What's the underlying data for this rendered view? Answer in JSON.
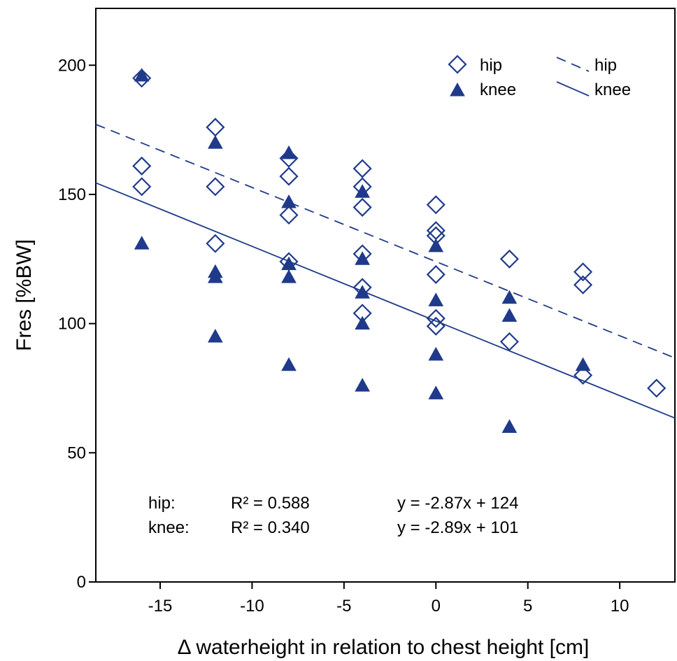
{
  "chart_data": {
    "type": "scatter",
    "xlabel": "Δ waterheight in relation to chest height [cm]",
    "ylabel": "Fres [%BW]",
    "xlim": [
      -18.5,
      13
    ],
    "ylim": [
      0,
      222
    ],
    "x_ticks": [
      -15,
      -10,
      -5,
      0,
      5,
      10
    ],
    "y_ticks": [
      0,
      50,
      100,
      150,
      200
    ],
    "grid": false,
    "legend_position": "top-right",
    "series": [
      {
        "name": "hip",
        "kind": "points",
        "marker": "diamond-open",
        "color": "#1f3a8a",
        "points": [
          [
            -16,
            195
          ],
          [
            -16,
            161
          ],
          [
            -16,
            153
          ],
          [
            -12,
            176
          ],
          [
            -12,
            153
          ],
          [
            -12,
            131
          ],
          [
            -8,
            164
          ],
          [
            -8,
            157
          ],
          [
            -8,
            142
          ],
          [
            -8,
            124
          ],
          [
            -4,
            160
          ],
          [
            -4,
            153
          ],
          [
            -4,
            145
          ],
          [
            -4,
            127
          ],
          [
            -4,
            114
          ],
          [
            -4,
            104
          ],
          [
            0,
            146
          ],
          [
            0,
            136
          ],
          [
            0,
            134
          ],
          [
            0,
            119
          ],
          [
            0,
            102
          ],
          [
            0,
            99
          ],
          [
            4,
            125
          ],
          [
            4,
            93
          ],
          [
            8,
            120
          ],
          [
            8,
            115
          ],
          [
            8,
            80
          ],
          [
            12,
            75
          ]
        ]
      },
      {
        "name": "knee",
        "kind": "points",
        "marker": "triangle-filled",
        "color": "#1f3a8a",
        "points": [
          [
            -16,
            196
          ],
          [
            -16,
            131
          ],
          [
            -12,
            170
          ],
          [
            -12,
            120
          ],
          [
            -12,
            118
          ],
          [
            -12,
            95
          ],
          [
            -8,
            166
          ],
          [
            -8,
            147
          ],
          [
            -8,
            123
          ],
          [
            -8,
            118
          ],
          [
            -8,
            84
          ],
          [
            -4,
            151
          ],
          [
            -4,
            125
          ],
          [
            -4,
            112
          ],
          [
            -4,
            100
          ],
          [
            -4,
            76
          ],
          [
            0,
            130
          ],
          [
            0,
            109
          ],
          [
            0,
            88
          ],
          [
            0,
            73
          ],
          [
            4,
            110
          ],
          [
            4,
            103
          ],
          [
            4,
            60
          ],
          [
            8,
            84
          ]
        ]
      },
      {
        "name": "hip",
        "kind": "fit-line",
        "style": "dashed",
        "color": "#1f3a8a",
        "slope": -2.87,
        "intercept": 124
      },
      {
        "name": "knee",
        "kind": "fit-line",
        "style": "solid",
        "color": "#1f3a8a",
        "slope": -2.89,
        "intercept": 101
      }
    ],
    "legend": {
      "points": [
        {
          "label": "hip",
          "marker": "diamond-open"
        },
        {
          "label": "knee",
          "marker": "triangle-filled"
        }
      ],
      "lines": [
        {
          "label": "hip",
          "style": "dashed"
        },
        {
          "label": "knee",
          "style": "solid"
        }
      ]
    },
    "annotations": {
      "rows": [
        {
          "name": "hip:",
          "r2": "R² = 0.588",
          "eq": "y = -2.87x + 124"
        },
        {
          "name": "knee:",
          "r2": "R² = 0.340",
          "eq": "y = -2.89x + 101"
        }
      ]
    }
  }
}
